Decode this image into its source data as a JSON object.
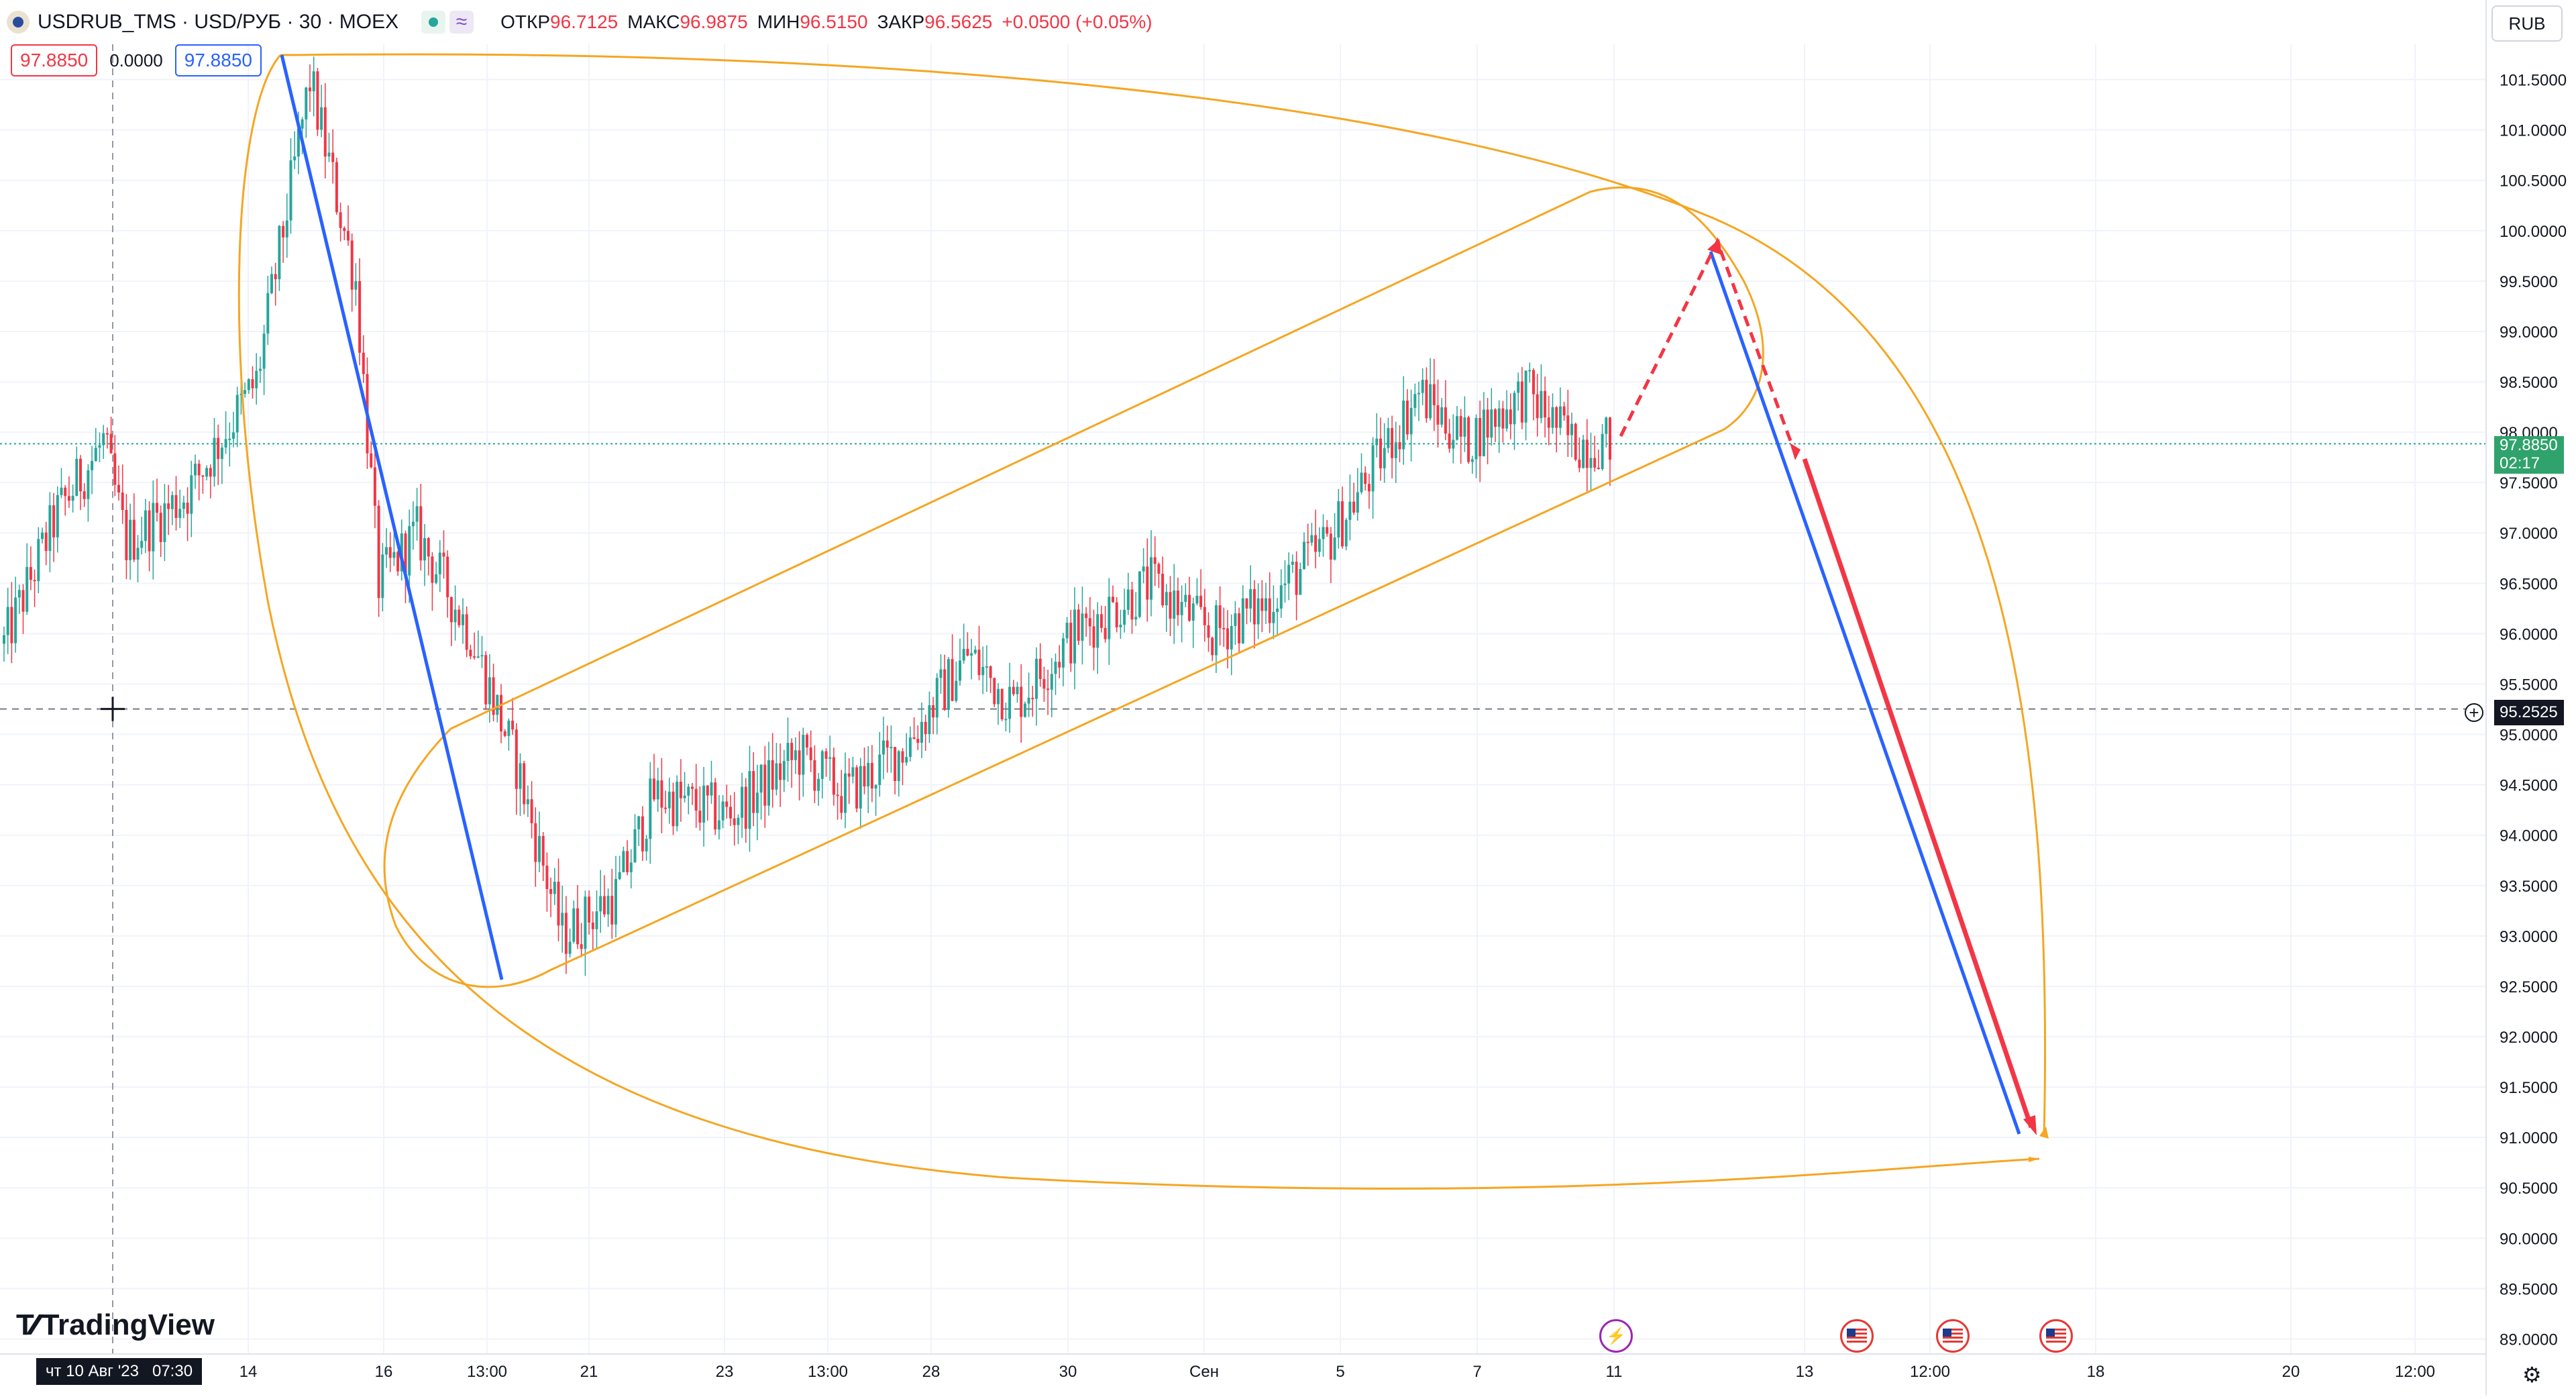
{
  "header": {
    "symbol": "USDRUB_TMS · USD/РУБ · 30 · MOEX",
    "open_label": "ОТКР",
    "open_value": "96.7125",
    "high_label": "МАКС",
    "high_value": "96.9875",
    "low_label": "МИН",
    "low_value": "96.5150",
    "close_label": "ЗАКР",
    "close_value": "96.5625",
    "change": "+0.0500 (+0.05%)",
    "bid": "97.8850",
    "spread": "0.0000",
    "ask": "97.8850",
    "currency": "RUB",
    "wave_icon": "≈"
  },
  "watermark": "TradingView",
  "crosshair": {
    "time_label": "чт 10 Авг '23   07:30",
    "price_label": "95.2525"
  },
  "current_price": {
    "value": "97.8850",
    "countdown": "02:17"
  },
  "colors": {
    "up": "#26a69a",
    "down": "#f23645",
    "channel": "#f5a623",
    "blue_line": "#2962ff",
    "red_arrow": "#f23645"
  },
  "chart_data": {
    "type": "candlestick",
    "title": "",
    "y_axis": {
      "ylim": [
        88.85,
        101.85
      ],
      "tick_labels": [
        "101.5000",
        "101.0000",
        "100.5000",
        "100.0000",
        "99.5000",
        "99.0000",
        "98.5000",
        "98.0000",
        "97.5000",
        "97.0000",
        "96.5000",
        "96.0000",
        "95.5000",
        "95.0000",
        "94.5000",
        "94.0000",
        "93.5000",
        "93.0000",
        "92.5000",
        "92.0000",
        "91.5000",
        "91.0000",
        "90.5000",
        "90.0000",
        "89.5000",
        "89.0000"
      ]
    },
    "x_axis": {
      "tick_labels": [
        "14",
        "16",
        "13:00",
        "21",
        "23",
        "13:00",
        "28",
        "30",
        "Сен",
        "5",
        "7",
        "11",
        "13",
        "12:00",
        "18",
        "20",
        "12:00"
      ]
    },
    "grid": true,
    "price_path": [
      {
        "i": 0,
        "p": 95.9
      },
      {
        "i": 14,
        "p": 97.2
      },
      {
        "i": 26,
        "p": 97.9
      },
      {
        "i": 32,
        "p": 96.9
      },
      {
        "i": 48,
        "p": 97.4
      },
      {
        "i": 66,
        "p": 98.5
      },
      {
        "i": 80,
        "p": 101.5
      },
      {
        "i": 92,
        "p": 99.5
      },
      {
        "i": 98,
        "p": 96.5
      },
      {
        "i": 108,
        "p": 97.0
      },
      {
        "i": 122,
        "p": 96.0
      },
      {
        "i": 134,
        "p": 94.7
      },
      {
        "i": 146,
        "p": 93.0
      },
      {
        "i": 160,
        "p": 93.4
      },
      {
        "i": 170,
        "p": 94.4
      },
      {
        "i": 190,
        "p": 94.2
      },
      {
        "i": 208,
        "p": 94.8
      },
      {
        "i": 220,
        "p": 94.4
      },
      {
        "i": 236,
        "p": 94.9
      },
      {
        "i": 252,
        "p": 95.8
      },
      {
        "i": 264,
        "p": 95.3
      },
      {
        "i": 280,
        "p": 96.0
      },
      {
        "i": 300,
        "p": 96.5
      },
      {
        "i": 316,
        "p": 96.0
      },
      {
        "i": 330,
        "p": 96.3
      },
      {
        "i": 346,
        "p": 96.9
      },
      {
        "i": 356,
        "p": 97.5
      },
      {
        "i": 370,
        "p": 98.4
      },
      {
        "i": 382,
        "p": 97.9
      },
      {
        "i": 398,
        "p": 98.4
      },
      {
        "i": 410,
        "p": 97.9
      },
      {
        "i": 420,
        "p": 97.9
      }
    ],
    "annotations": {
      "blue_lines": [
        {
          "from": {
            "x": "11 Aug",
            "y": 101.7
          },
          "to": {
            "x": "17 Aug 13:00",
            "y": 92.6
          }
        },
        {
          "from": {
            "x": "12 Sep",
            "y": 99.8
          },
          "to": {
            "x": "16 Sep",
            "y": 91.05
          }
        }
      ],
      "forecast_path_dashed": [
        {
          "x": "11 Sep",
          "y": 97.9
        },
        {
          "x": "12 Sep",
          "y": 99.9
        },
        {
          "x": "13 Sep",
          "y": 98.0
        }
      ],
      "forecast_arrow_solid": {
        "from": {
          "x": "13 Sep",
          "y": 97.8
        },
        "to": {
          "x": "16 Sep",
          "y": 91.0
        }
      },
      "target_level": 90.8
    },
    "event_markers": [
      "lightning",
      "us-flag",
      "us-flag",
      "us-flag"
    ]
  }
}
